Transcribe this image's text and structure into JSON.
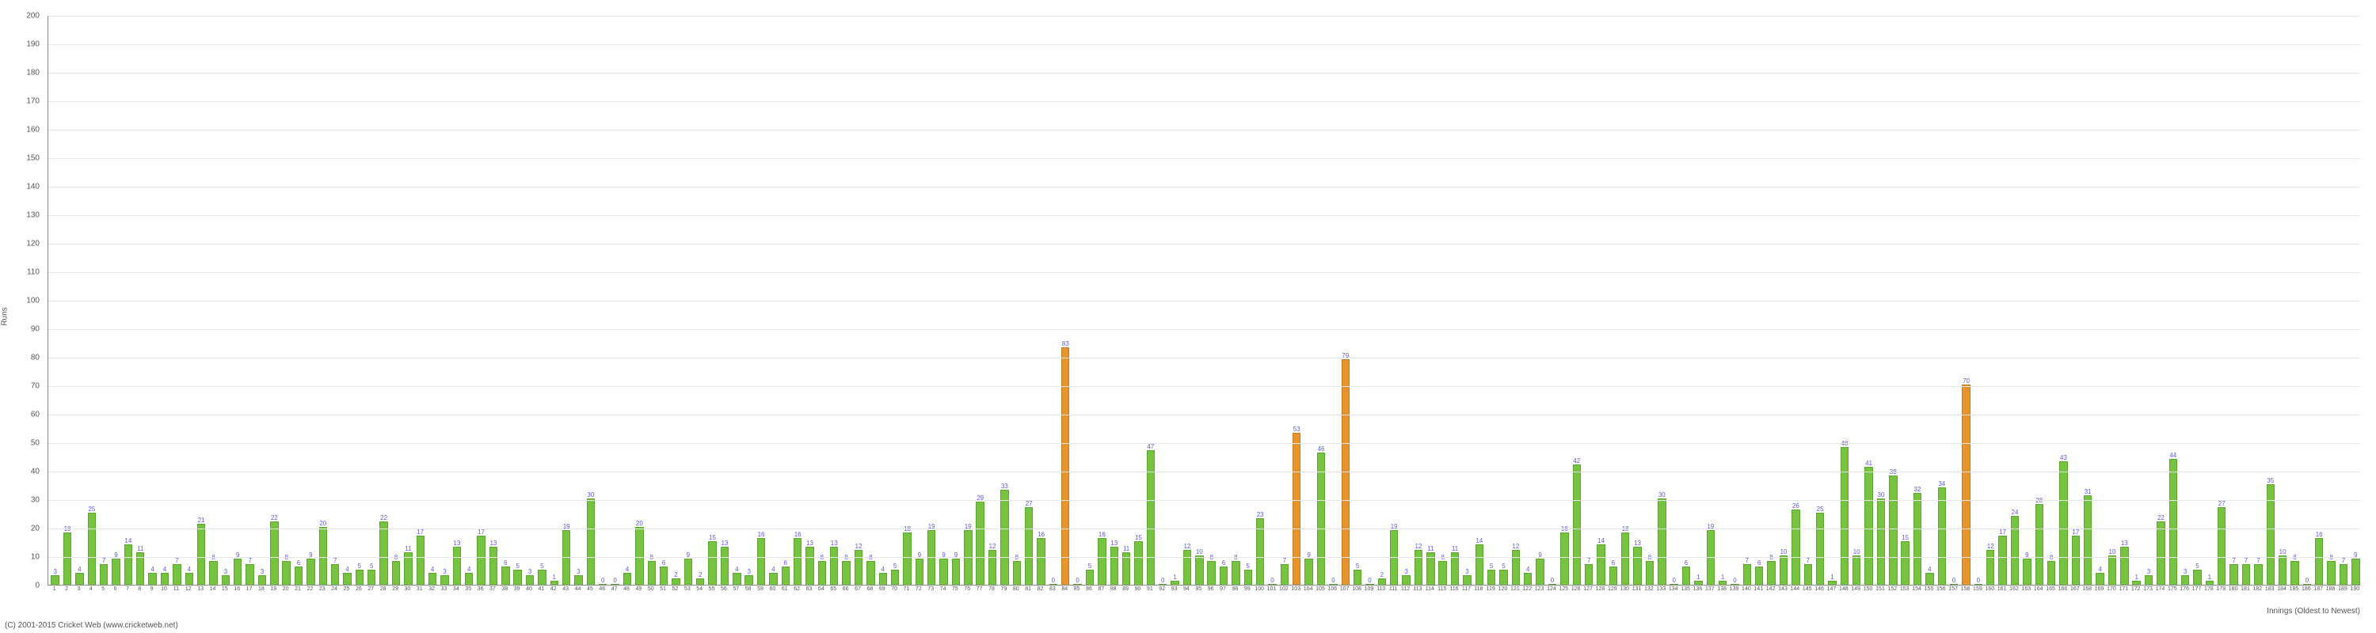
{
  "chart": {
    "type": "bar",
    "ylabel": "Runs",
    "xlabel": "Innings (Oldest to Newest)",
    "ylim": [
      0,
      200
    ],
    "ytick_step": 10,
    "label_fontsize": 10,
    "value_label_fontsize": 8,
    "value_label_color": "#5b5bd6",
    "xtick_label_fontsize": 7,
    "background_color": "#ffffff",
    "grid_color": "#e6e6e6",
    "axis_color": "#888888",
    "bar_width_ratio": 0.55,
    "threshold_orange": 50,
    "colors": {
      "normal": "#76c33f",
      "highlight": "#e6942b",
      "bar_border": "#5aa62f",
      "highlight_border": "#c97a1f"
    },
    "values": [
      3,
      18,
      4,
      25,
      7,
      9,
      14,
      11,
      4,
      4,
      7,
      4,
      21,
      8,
      3,
      9,
      7,
      3,
      22,
      8,
      6,
      9,
      20,
      7,
      4,
      5,
      5,
      22,
      8,
      11,
      17,
      4,
      3,
      13,
      4,
      17,
      13,
      6,
      5,
      3,
      5,
      1,
      19,
      3,
      30,
      0,
      0,
      4,
      20,
      8,
      6,
      2,
      9,
      2,
      15,
      13,
      4,
      3,
      16,
      4,
      6,
      16,
      13,
      8,
      13,
      8,
      12,
      8,
      4,
      5,
      18,
      9,
      19,
      9,
      9,
      19,
      29,
      12,
      33,
      8,
      27,
      16,
      0,
      83,
      0,
      5,
      16,
      13,
      11,
      15,
      47,
      0,
      1,
      12,
      10,
      8,
      6,
      8,
      5,
      23,
      0,
      7,
      53,
      9,
      46,
      0,
      79,
      5,
      0,
      2,
      19,
      3,
      12,
      11,
      8,
      11,
      3,
      14,
      5,
      5,
      12,
      4,
      9,
      0,
      18,
      42,
      7,
      14,
      6,
      18,
      13,
      8,
      30,
      0,
      6,
      1,
      19,
      1,
      0,
      7,
      6,
      8,
      10,
      26,
      7,
      25,
      1,
      48,
      10,
      41,
      30,
      38,
      15,
      32,
      4,
      34,
      0,
      70,
      0,
      12,
      17,
      24,
      9,
      28,
      8,
      43,
      17,
      31,
      4,
      10,
      13,
      1,
      3,
      22,
      44,
      3,
      5,
      1,
      27,
      7,
      7,
      7,
      35,
      10,
      8,
      0,
      16,
      8,
      7,
      9
    ]
  },
  "footer": "(C) 2001-2015 Cricket Web (www.cricketweb.net)"
}
